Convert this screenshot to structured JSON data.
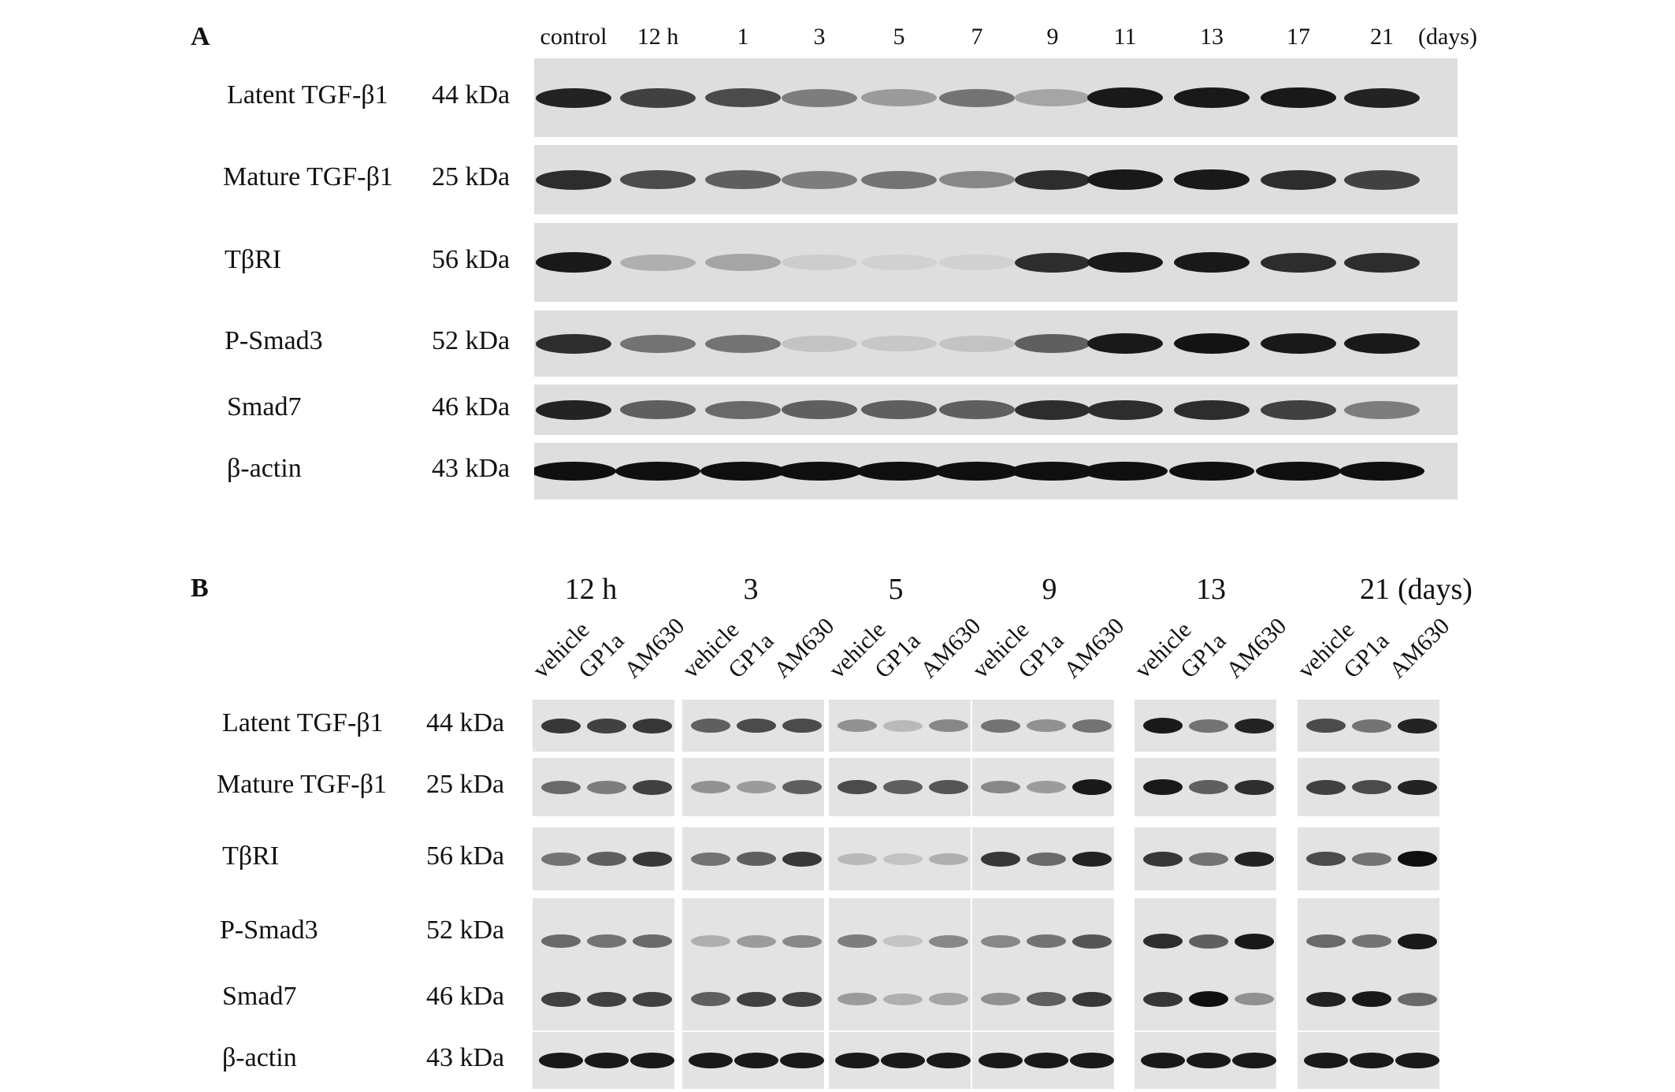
{
  "panel_a": {
    "letter": "A",
    "lanes": [
      "control",
      "12 h",
      "1",
      "3",
      "5",
      "7",
      "9",
      "11",
      "13",
      "17",
      "21"
    ],
    "unit_label": "(days)",
    "rows": [
      {
        "label": "Latent TGF-β1",
        "kda": "44 kDa",
        "intensity": [
          0.9,
          0.75,
          0.7,
          0.45,
          0.3,
          0.5,
          0.25,
          0.95,
          0.95,
          0.95,
          0.9
        ]
      },
      {
        "label": "Mature TGF-β1",
        "kda": "25 kDa",
        "intensity": [
          0.85,
          0.7,
          0.6,
          0.45,
          0.5,
          0.4,
          0.85,
          0.95,
          0.95,
          0.85,
          0.75
        ]
      },
      {
        "label": "TβRI",
        "kda": "56 kDa",
        "intensity": [
          0.95,
          0.2,
          0.25,
          0.05,
          0.03,
          0.03,
          0.85,
          0.95,
          0.95,
          0.85,
          0.85
        ]
      },
      {
        "label": "P-Smad3",
        "kda": "52 kDa",
        "intensity": [
          0.85,
          0.5,
          0.5,
          0.1,
          0.08,
          0.1,
          0.6,
          0.95,
          0.98,
          0.95,
          0.95
        ]
      },
      {
        "label": "Smad7",
        "kda": "46 kDa",
        "intensity": [
          0.9,
          0.6,
          0.55,
          0.6,
          0.6,
          0.6,
          0.85,
          0.85,
          0.85,
          0.75,
          0.45
        ]
      },
      {
        "label": "β-actin",
        "kda": "43 kDa",
        "intensity": [
          1,
          1,
          1,
          1,
          1,
          1,
          1,
          1,
          1,
          1,
          1
        ]
      }
    ]
  },
  "panel_b": {
    "letter": "B",
    "groups": [
      "12 h",
      "3",
      "5",
      "9",
      "13",
      "21"
    ],
    "unit_label": "(days)",
    "treatments": [
      "vehicle",
      "GP1a",
      "AM630"
    ],
    "rows": [
      {
        "label": "Latent TGF-β1",
        "kda": "44 kDa",
        "intensity": [
          [
            0.8,
            0.75,
            0.8
          ],
          [
            0.6,
            0.7,
            0.7
          ],
          [
            0.35,
            0.15,
            0.4
          ],
          [
            0.5,
            0.35,
            0.5
          ],
          [
            0.95,
            0.5,
            0.9
          ],
          [
            0.7,
            0.5,
            0.9
          ]
        ]
      },
      {
        "label": "Mature TGF-β1",
        "kda": "25 kDa",
        "intensity": [
          [
            0.55,
            0.45,
            0.75
          ],
          [
            0.35,
            0.3,
            0.6
          ],
          [
            0.7,
            0.6,
            0.65
          ],
          [
            0.4,
            0.3,
            0.95
          ],
          [
            0.95,
            0.6,
            0.85
          ],
          [
            0.75,
            0.7,
            0.9
          ]
        ]
      },
      {
        "label": "TβRI",
        "kda": "56 kDa",
        "intensity": [
          [
            0.5,
            0.6,
            0.8
          ],
          [
            0.5,
            0.6,
            0.8
          ],
          [
            0.15,
            0.1,
            0.2
          ],
          [
            0.8,
            0.55,
            0.9
          ],
          [
            0.8,
            0.5,
            0.9
          ],
          [
            0.7,
            0.5,
            1
          ]
        ]
      },
      {
        "label": "P-Smad3",
        "kda": "52 kDa",
        "intensity": [
          [
            0.55,
            0.5,
            0.55
          ],
          [
            0.2,
            0.3,
            0.4
          ],
          [
            0.45,
            0.1,
            0.4
          ],
          [
            0.4,
            0.5,
            0.65
          ],
          [
            0.85,
            0.6,
            0.95
          ],
          [
            0.55,
            0.5,
            0.95
          ]
        ]
      },
      {
        "label": "Smad7",
        "kda": "46 kDa",
        "intensity": [
          [
            0.75,
            0.75,
            0.75
          ],
          [
            0.6,
            0.75,
            0.75
          ],
          [
            0.3,
            0.2,
            0.25
          ],
          [
            0.35,
            0.6,
            0.8
          ],
          [
            0.8,
            1,
            0.35
          ],
          [
            0.9,
            0.95,
            0.55
          ]
        ]
      },
      {
        "label": "β-actin",
        "kda": "43 kDa",
        "intensity": [
          [
            0.95,
            0.95,
            0.95
          ],
          [
            0.95,
            0.95,
            0.95
          ],
          [
            0.95,
            0.95,
            0.95
          ],
          [
            0.95,
            0.95,
            0.95
          ],
          [
            0.95,
            0.95,
            0.95
          ],
          [
            0.95,
            0.95,
            0.95
          ]
        ]
      }
    ]
  }
}
